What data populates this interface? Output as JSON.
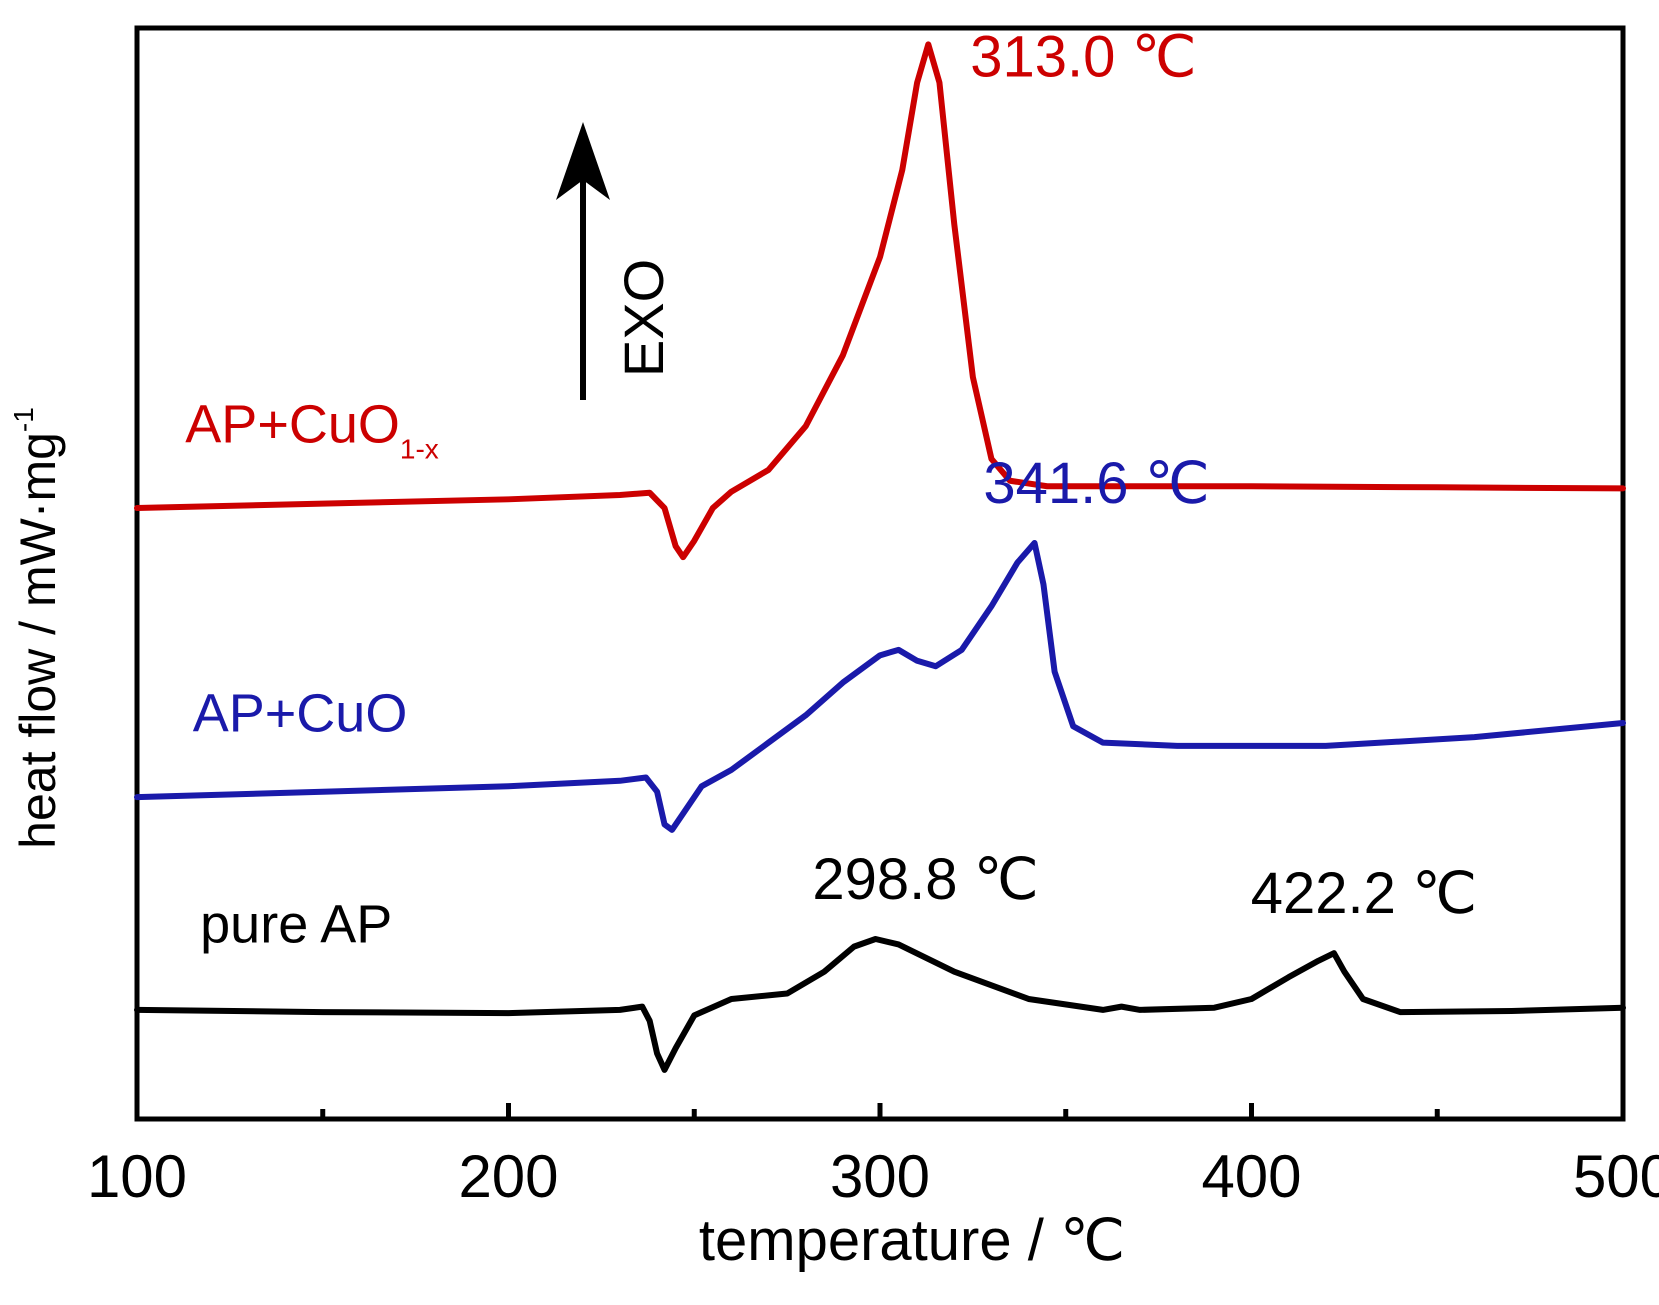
{
  "chart_data": {
    "type": "line",
    "xlabel": "temperature / ℃",
    "ylabel": "heat flow / mW·mg",
    "ylabel_sup": "-1",
    "xlim": [
      100,
      500
    ],
    "x_ticks": [
      100,
      200,
      300,
      400,
      500
    ],
    "y_ticks_shown": false,
    "grid": false,
    "legend": "none (series labelled inline)",
    "exo_indicator": {
      "label": "EXO",
      "direction": "up"
    },
    "series": [
      {
        "name": "AP+CuO",
        "name_sub": "1-x",
        "color": "#cc0000",
        "label_x": 113,
        "label_y": 0.62,
        "points": [
          [
            100,
            0.56
          ],
          [
            150,
            0.564
          ],
          [
            200,
            0.568
          ],
          [
            230,
            0.572
          ],
          [
            238,
            0.574
          ],
          [
            242,
            0.56
          ],
          [
            245,
            0.525
          ],
          [
            247,
            0.515
          ],
          [
            250,
            0.53
          ],
          [
            255,
            0.56
          ],
          [
            260,
            0.575
          ],
          [
            270,
            0.595
          ],
          [
            280,
            0.635
          ],
          [
            290,
            0.7
          ],
          [
            300,
            0.79
          ],
          [
            306,
            0.87
          ],
          [
            310,
            0.95
          ],
          [
            313,
            0.985
          ],
          [
            316,
            0.95
          ],
          [
            320,
            0.82
          ],
          [
            325,
            0.68
          ],
          [
            330,
            0.605
          ],
          [
            335,
            0.585
          ],
          [
            345,
            0.58
          ],
          [
            400,
            0.58
          ],
          [
            450,
            0.579
          ],
          [
            500,
            0.578
          ]
        ],
        "peaks": [
          {
            "x": 313.0,
            "label": "313.0 ℃"
          }
        ]
      },
      {
        "name": "AP+CuO",
        "color": "#1a1aaa",
        "label_x": 115,
        "label_y": 0.355,
        "points": [
          [
            100,
            0.295
          ],
          [
            150,
            0.3
          ],
          [
            200,
            0.305
          ],
          [
            230,
            0.31
          ],
          [
            237,
            0.313
          ],
          [
            240,
            0.3
          ],
          [
            242,
            0.27
          ],
          [
            244,
            0.265
          ],
          [
            247,
            0.28
          ],
          [
            252,
            0.305
          ],
          [
            260,
            0.32
          ],
          [
            270,
            0.345
          ],
          [
            280,
            0.37
          ],
          [
            290,
            0.4
          ],
          [
            300,
            0.425
          ],
          [
            305,
            0.43
          ],
          [
            310,
            0.42
          ],
          [
            315,
            0.415
          ],
          [
            322,
            0.43
          ],
          [
            330,
            0.47
          ],
          [
            337,
            0.51
          ],
          [
            341.6,
            0.528
          ],
          [
            344,
            0.49
          ],
          [
            347,
            0.41
          ],
          [
            352,
            0.36
          ],
          [
            360,
            0.345
          ],
          [
            380,
            0.342
          ],
          [
            420,
            0.342
          ],
          [
            460,
            0.35
          ],
          [
            500,
            0.363
          ]
        ],
        "peaks": [
          {
            "x": 341.6,
            "label": "341.6 ℃"
          }
        ]
      },
      {
        "name": "pure AP",
        "color": "#000000",
        "label_x": 117,
        "label_y": 0.162,
        "points": [
          [
            100,
            0.1
          ],
          [
            150,
            0.098
          ],
          [
            200,
            0.097
          ],
          [
            230,
            0.1
          ],
          [
            236,
            0.103
          ],
          [
            238,
            0.09
          ],
          [
            240,
            0.06
          ],
          [
            242,
            0.045
          ],
          [
            245,
            0.065
          ],
          [
            250,
            0.095
          ],
          [
            260,
            0.11
          ],
          [
            275,
            0.115
          ],
          [
            285,
            0.135
          ],
          [
            293,
            0.158
          ],
          [
            298.8,
            0.165
          ],
          [
            305,
            0.16
          ],
          [
            320,
            0.135
          ],
          [
            340,
            0.11
          ],
          [
            360,
            0.1
          ],
          [
            365,
            0.103
          ],
          [
            370,
            0.1
          ],
          [
            390,
            0.102
          ],
          [
            400,
            0.11
          ],
          [
            410,
            0.13
          ],
          [
            418,
            0.145
          ],
          [
            422.2,
            0.152
          ],
          [
            425,
            0.135
          ],
          [
            430,
            0.11
          ],
          [
            440,
            0.098
          ],
          [
            470,
            0.099
          ],
          [
            500,
            0.102
          ]
        ],
        "peaks": [
          {
            "x": 298.8,
            "label": "298.8 ℃"
          },
          {
            "x": 422.2,
            "label": "422.2 ℃"
          }
        ]
      }
    ]
  }
}
